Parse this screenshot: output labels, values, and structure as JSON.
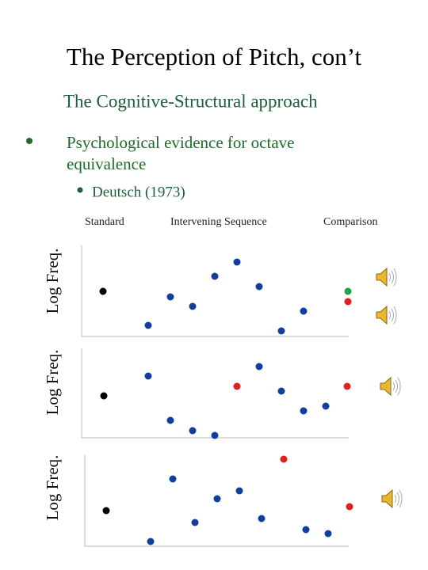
{
  "header": {
    "title": "The Perception of Pitch, con’t",
    "subtitle": "The Cognitive-Structural approach"
  },
  "bullets": [
    {
      "lines": [
        "Psychological evidence for octave",
        "equivalence"
      ],
      "sub_bullets": [
        "Deutsch (1973)"
      ]
    }
  ],
  "column_labels": [
    "Standard",
    "Intervening Sequence",
    "Comparison"
  ],
  "panels": [
    {
      "y_label": "Log Freq."
    },
    {
      "y_label": "Log Freq."
    },
    {
      "y_label": "Log Freq."
    }
  ]
}
